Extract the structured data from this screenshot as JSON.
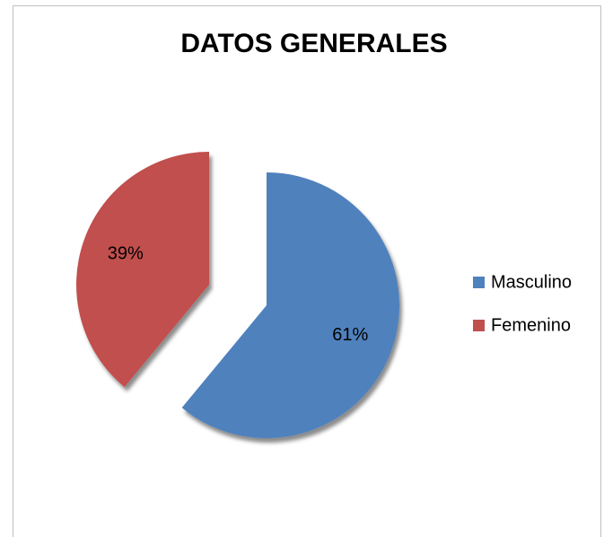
{
  "chart_data": {
    "type": "pie",
    "title": "DATOS GENERALES",
    "categories": [
      "Masculino",
      "Femenino"
    ],
    "values": [
      61,
      39
    ],
    "value_labels": [
      "61%",
      "39%"
    ],
    "colors": [
      "#4f81bd",
      "#c0504d"
    ],
    "legend": "right"
  }
}
